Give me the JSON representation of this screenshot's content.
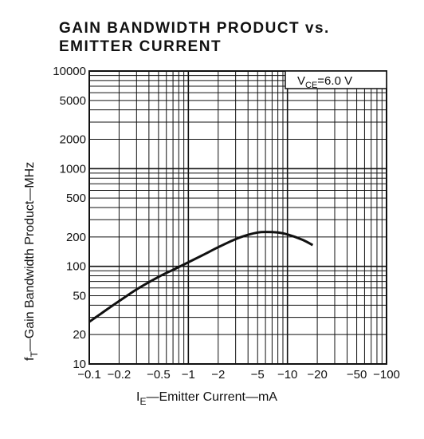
{
  "chart_data": {
    "type": "line",
    "title_line1": "GAIN BANDWIDTH PRODUCT vs.",
    "title_line2": "EMITTER CURRENT",
    "ylabel_prefix": "f",
    "ylabel_sub": "T",
    "ylabel_rest": "—Gain Bandwidth Product—MHz",
    "xlabel_prefix": "I",
    "xlabel_sub": "E",
    "xlabel_rest": "—Emitter Current—mA",
    "annotation_prefix": "V",
    "annotation_sub": "CE",
    "annotation_rest": "=6.0 V",
    "annotation_placement": "top-right",
    "x_scale": "log",
    "y_scale": "log",
    "xlim": [
      -0.1,
      -100
    ],
    "ylim": [
      10,
      10000
    ],
    "grid": true,
    "x_ticks": [
      {
        "value": -0.1,
        "label": "−0.1"
      },
      {
        "value": -0.2,
        "label": "−0.2"
      },
      {
        "value": -0.5,
        "label": "−0.5"
      },
      {
        "value": -1,
        "label": "−1"
      },
      {
        "value": -2,
        "label": "−2"
      },
      {
        "value": -5,
        "label": "−5"
      },
      {
        "value": -10,
        "label": "−10"
      },
      {
        "value": -20,
        "label": "−20"
      },
      {
        "value": -50,
        "label": "−50"
      },
      {
        "value": -100,
        "label": "−100"
      }
    ],
    "y_ticks": [
      {
        "value": 10,
        "label": "10"
      },
      {
        "value": 20,
        "label": "20"
      },
      {
        "value": 50,
        "label": "50"
      },
      {
        "value": 100,
        "label": "100"
      },
      {
        "value": 200,
        "label": "200"
      },
      {
        "value": 500,
        "label": "500"
      },
      {
        "value": 1000,
        "label": "1000"
      },
      {
        "value": 2000,
        "label": "2000"
      },
      {
        "value": 5000,
        "label": "5000"
      },
      {
        "value": 10000,
        "label": "10000"
      }
    ],
    "series": [
      {
        "x": [
          -0.1,
          -0.15,
          -0.2,
          -0.3,
          -0.5,
          -0.7,
          -1,
          -1.5,
          -2,
          -3,
          -4,
          -5,
          -6,
          -8,
          -10,
          -14,
          -18
        ],
        "y": [
          27,
          36,
          44,
          58,
          78,
          92,
          110,
          135,
          157,
          190,
          210,
          222,
          225,
          222,
          212,
          188,
          165
        ]
      }
    ]
  }
}
